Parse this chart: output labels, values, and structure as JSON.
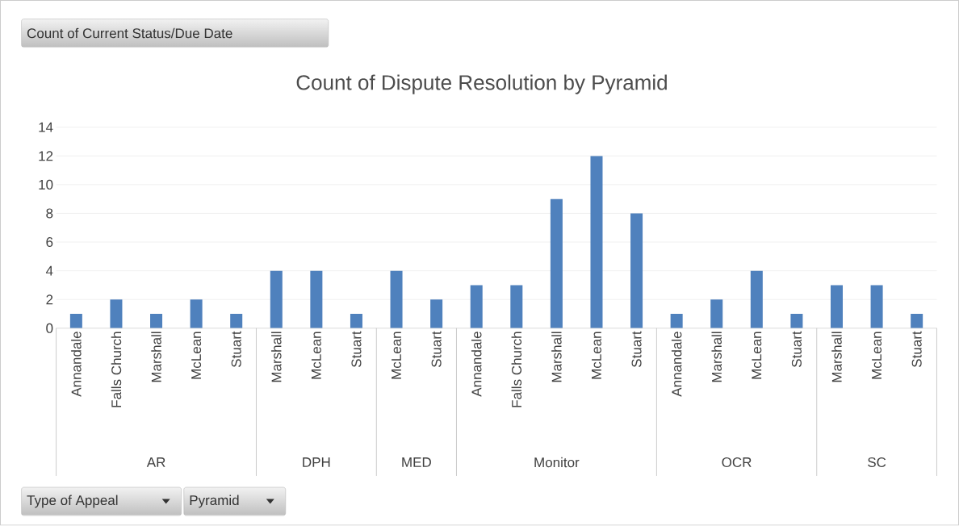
{
  "chart_data": {
    "type": "bar",
    "title": "Count of Dispute Resolution by Pyramid",
    "categories": [
      "Annandale",
      "Falls Church",
      "Marshall",
      "McLean",
      "Stuart",
      "Marshall",
      "McLean",
      "Stuart",
      "McLean",
      "Stuart",
      "Annandale",
      "Falls Church",
      "Marshall",
      "McLean",
      "Stuart",
      "Annandale",
      "Marshall",
      "McLean",
      "Stuart",
      "Marshall",
      "McLean",
      "Stuart"
    ],
    "values": [
      1,
      2,
      1,
      2,
      1,
      4,
      4,
      1,
      4,
      2,
      3,
      3,
      9,
      12,
      8,
      1,
      2,
      4,
      1,
      3,
      3,
      1
    ],
    "color": "#4f81bd",
    "ylim": [
      0,
      14
    ],
    "yticks": [
      0,
      2,
      4,
      6,
      8,
      10,
      12,
      14
    ],
    "grid": "y",
    "annotations": [
      "Count of Current Status/Due Date",
      "Type of Appeal",
      "Pyramid",
      "AR",
      "DPH",
      "MED",
      "Monitor",
      "OCR",
      "SC"
    ]
  }
}
